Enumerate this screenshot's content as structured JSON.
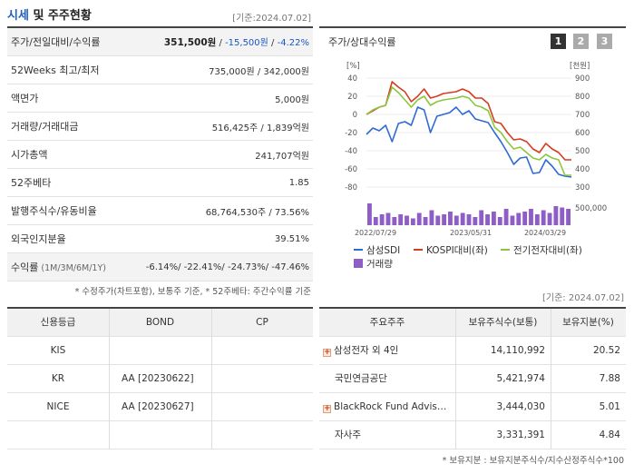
{
  "header": {
    "title_highlight": "시세",
    "title_rest": " 및 주주현황",
    "base_date": "[기준:2024.07.02]"
  },
  "quote": {
    "rows": [
      {
        "label": "주가/전일대비/수익률",
        "price": "351,500원",
        "sep1": " / ",
        "change": "-15,500원",
        "sep2": " / ",
        "rate": "-4.22%"
      },
      {
        "label": "52Weeks 최고/최저",
        "value": "735,000원 / 342,000원"
      },
      {
        "label": "액면가",
        "value": "5,000원"
      },
      {
        "label": "거래량/거래대금",
        "value": "516,425주 / 1,839억원"
      },
      {
        "label": "시가총액",
        "value": "241,707억원"
      },
      {
        "label": "52주베타",
        "value": "1.85"
      },
      {
        "label": "발행주식수/유동비율",
        "value": "68,764,530주 / 73.56%"
      },
      {
        "label": "외국인지분율",
        "value": "39.51%"
      },
      {
        "label": "수익률",
        "label_small": " (1M/3M/6M/1Y)",
        "value": "-6.14%/ -22.41%/ -24.73%/ -47.46%"
      }
    ],
    "note": "* 수정주가(차트포함), 보통주 기준, * 52주베타: 주간수익률 기준"
  },
  "chart_panel": {
    "title": "주가/상대수익률",
    "period_buttons": [
      "1",
      "2",
      "3"
    ],
    "active_button": "1"
  },
  "chart_data": {
    "type": "line",
    "title": "주가/상대수익률",
    "left_axis_unit": "[%]",
    "right_axis_unit": "[천원]",
    "left_ticks": [
      "40",
      "20",
      "0",
      "-20",
      "-40",
      "-60",
      "-80"
    ],
    "right_ticks": [
      "900",
      "800",
      "700",
      "600",
      "500",
      "400",
      "300"
    ],
    "volume_tick": "500,000",
    "x_labels": [
      "2022/07/29",
      "2023/05/31",
      "2024/03/29"
    ],
    "ylim_left": [
      -80,
      40
    ],
    "ylim_right": [
      300,
      900
    ],
    "series": [
      {
        "name": "삼성SDI",
        "color": "#2f6ad4",
        "values": [
          -22,
          -15,
          -18,
          -12,
          -30,
          -10,
          -8,
          -12,
          8,
          5,
          -20,
          -2,
          0,
          2,
          8,
          0,
          4,
          -5,
          -7,
          -9,
          -20,
          -30,
          -42,
          -55,
          -48,
          -47,
          -65,
          -64,
          -50,
          -57,
          -66,
          -68,
          -69
        ]
      },
      {
        "name": "KOSPI대비(좌)",
        "color": "#d63c20",
        "values": [
          0,
          4,
          8,
          10,
          36,
          30,
          25,
          14,
          20,
          28,
          18,
          20,
          23,
          24,
          25,
          28,
          25,
          18,
          18,
          12,
          -8,
          -10,
          -20,
          -28,
          -27,
          -30,
          -38,
          -42,
          -32,
          -38,
          -42,
          -50,
          -50
        ]
      },
      {
        "name": "전기전자대비(좌)",
        "color": "#8cc63f",
        "values": [
          0,
          5,
          8,
          10,
          30,
          24,
          16,
          8,
          16,
          20,
          10,
          14,
          16,
          17,
          18,
          20,
          18,
          10,
          8,
          4,
          -14,
          -20,
          -30,
          -38,
          -36,
          -42,
          -48,
          -50,
          -44,
          -48,
          -50,
          -67,
          -67
        ]
      },
      {
        "name": "거래량",
        "color": "#8e5ec6",
        "values": [
          16,
          6,
          8,
          9,
          6,
          8,
          7,
          5,
          9,
          6,
          11,
          7,
          8,
          10,
          7,
          9,
          8,
          6,
          11,
          8,
          10,
          6,
          12,
          7,
          9,
          10,
          12,
          8,
          11,
          9,
          14,
          13,
          12
        ]
      }
    ]
  },
  "credit": {
    "headers": [
      "신용등급",
      "BOND",
      "CP"
    ],
    "rows": [
      {
        "agency": "KIS",
        "bond": "",
        "cp": ""
      },
      {
        "agency": "KR",
        "bond": "AA  [20230622]",
        "cp": ""
      },
      {
        "agency": "NICE",
        "bond": "AA  [20230627]",
        "cp": ""
      },
      {
        "agency": "",
        "bond": "",
        "cp": ""
      }
    ]
  },
  "holders": {
    "base_date": "[기준: 2024.07.02]",
    "headers": [
      "주요주주",
      "보유주식수(보통)",
      "보유지분(%)"
    ],
    "rows": [
      {
        "name": "삼성전자 외 4인",
        "expand": true,
        "shares": "14,110,992",
        "ratio": "20.52"
      },
      {
        "name": "국민연금공단",
        "expand": false,
        "shares": "5,421,974",
        "ratio": "7.88"
      },
      {
        "name": "BlackRock Fund Advis…",
        "expand": true,
        "shares": "3,444,030",
        "ratio": "5.01"
      },
      {
        "name": "자사주",
        "expand": false,
        "shares": "3,331,391",
        "ratio": "4.84"
      }
    ],
    "note": "* 보유지분 : 보유지분주식수/지수산정주식수*100"
  }
}
